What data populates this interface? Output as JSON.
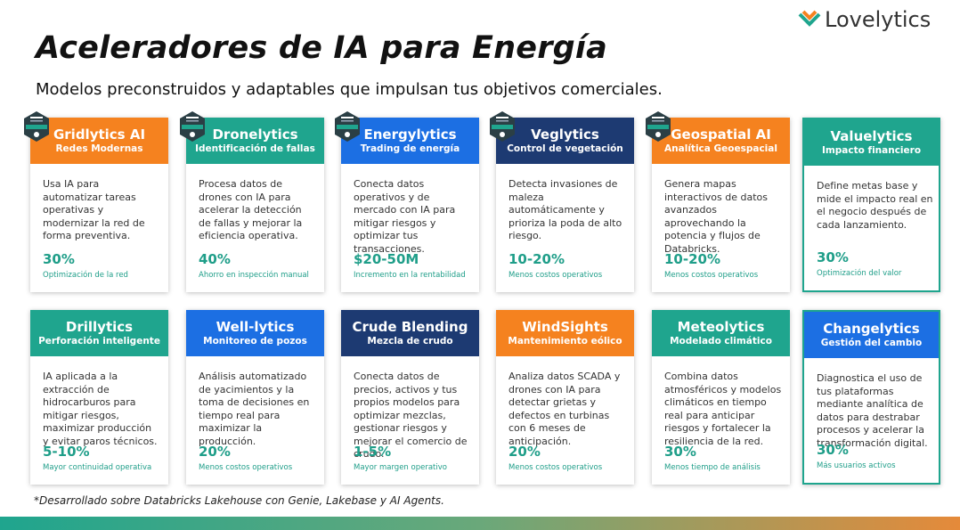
{
  "logo": "Lovelytics",
  "title": "Aceleradores de IA para Energía",
  "subtitle": "Modelos preconstruidos y adaptables que impulsan tus objetivos comerciales.",
  "cards": [
    {
      "name": "Gridlytics AI",
      "tagline": "Redes Modernas",
      "color": "#f5821f",
      "badge": true,
      "description": "Usa IA para automatizar tareas operativas y modernizar la red de forma preventiva.",
      "stat": "30%",
      "stat_label": "Optimización de la red"
    },
    {
      "name": "Dronelytics",
      "tagline": "Identificación de fallas",
      "color": "#1fa58e",
      "badge": true,
      "description": "Procesa datos de drones con IA para acelerar la detección de fallas y mejorar la eficiencia operativa.",
      "stat": "40%",
      "stat_label": "Ahorro en inspección manual"
    },
    {
      "name": "Energylytics",
      "tagline": "Trading de energía",
      "color": "#1c6fe3",
      "badge": true,
      "description": "Conecta datos operativos y de mercado con IA para mitigar riesgos y optimizar tus transacciones.",
      "stat": "$20-50M",
      "stat_label": "Incremento en la rentabilidad"
    },
    {
      "name": "Veglytics",
      "tagline": "Control de vegetación",
      "color": "#1d3a72",
      "badge": true,
      "description": "Detecta invasiones de maleza automáticamente y prioriza la poda de alto riesgo.",
      "stat": "10-20%",
      "stat_label": "Menos costos operativos"
    },
    {
      "name": "Geospatial AI",
      "tagline": "Analítica Geoespacial",
      "color": "#f5821f",
      "badge": true,
      "description": "Genera mapas interactivos de datos avanzados aprovechando la potencia y flujos de Databricks.",
      "stat": "10-20%",
      "stat_label": "Menos costos operativos"
    },
    {
      "name": "Valuelytics",
      "tagline": "Impacto financiero",
      "color": "#1fa58e",
      "badge": false,
      "description": "Define metas base y mide el impacto real en el negocio después de cada lanzamiento.",
      "stat": "30%",
      "stat_label": "Optimización del valor"
    },
    {
      "name": "Drillytics",
      "tagline": "Perforación inteligente",
      "color": "#1fa58e",
      "badge": false,
      "description": "IA aplicada a la extracción de hidrocarburos para mitigar riesgos, maximizar producción y evitar paros técnicos.",
      "stat": "5-10%",
      "stat_label": "Mayor continuidad operativa"
    },
    {
      "name": "Well-lytics",
      "tagline": "Monitoreo de pozos",
      "color": "#1c6fe3",
      "badge": false,
      "description": "Análisis automatizado de yacimientos y la toma de decisiones en tiempo real para maximizar la producción.",
      "stat": "20%",
      "stat_label": "Menos costos operativos"
    },
    {
      "name": "Crude Blending",
      "tagline": "Mezcla de crudo",
      "color": "#1d3a72",
      "badge": false,
      "description": "Conecta datos de precios, activos y tus propios modelos para optimizar mezclas, gestionar riesgos y mejorar el comercio de crudo.",
      "stat": "1-5%",
      "stat_label": "Mayor margen operativo"
    },
    {
      "name": "WindSights",
      "tagline": "Mantenimiento eólico",
      "color": "#f5821f",
      "badge": false,
      "description": "Analiza datos SCADA y drones con IA para detectar grietas y defectos en turbinas con 6 meses de anticipación.",
      "stat": "20%",
      "stat_label": "Menos costos operativos"
    },
    {
      "name": "Meteolytics",
      "tagline": "Modelado climático",
      "color": "#1fa58e",
      "badge": false,
      "description": "Combina datos atmosféricos y modelos climáticos en tiempo real para anticipar riesgos y fortalecer la resiliencia de la red.",
      "stat": "30%",
      "stat_label": "Menos tiempo de análisis"
    },
    {
      "name": "Changelytics",
      "tagline": "Gestión del cambio",
      "color": "#1c6fe3",
      "badge": false,
      "description": "Diagnostica el uso de tus plataformas mediante analítica de datos para destrabar procesos y acelerar la transformación digital.",
      "stat": "30%",
      "stat_label": "Más usuarios activos"
    }
  ],
  "footnote": "*Desarrollado sobre Databricks Lakehouse con Genie, Lakebase y AI Agents."
}
